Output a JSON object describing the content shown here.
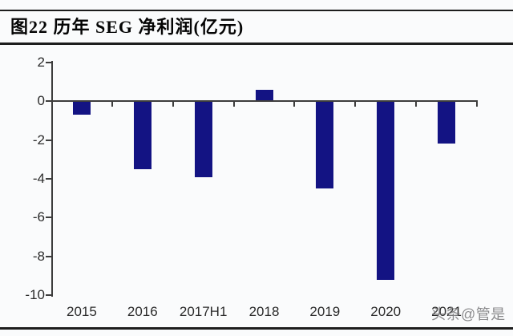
{
  "figure": {
    "title": "图22 历年 SEG 净利润(亿元)"
  },
  "watermark": {
    "text": "头条@管是"
  },
  "colors": {
    "bar": "#131383",
    "axis": "#3d3d3d",
    "tick_label": "#2b2b2b",
    "rule": "#1d1d1d",
    "background": "#fafbfc",
    "watermark": "#7d7d80"
  },
  "chart_data": {
    "type": "bar",
    "title": "图22 历年 SEG 净利润(亿元)",
    "categories": [
      "2015",
      "2016",
      "2017H1",
      "2018",
      "2019",
      "2020",
      "2021"
    ],
    "values": [
      -0.7,
      -3.5,
      -3.9,
      0.6,
      -4.5,
      -9.2,
      -2.2
    ],
    "xlabel": "",
    "ylabel": "",
    "ylim": [
      -10,
      2
    ],
    "yticks": [
      2,
      0,
      -2,
      -4,
      -6,
      -8,
      -10
    ],
    "grid": false,
    "legend": null,
    "bar_color": "#131383"
  }
}
